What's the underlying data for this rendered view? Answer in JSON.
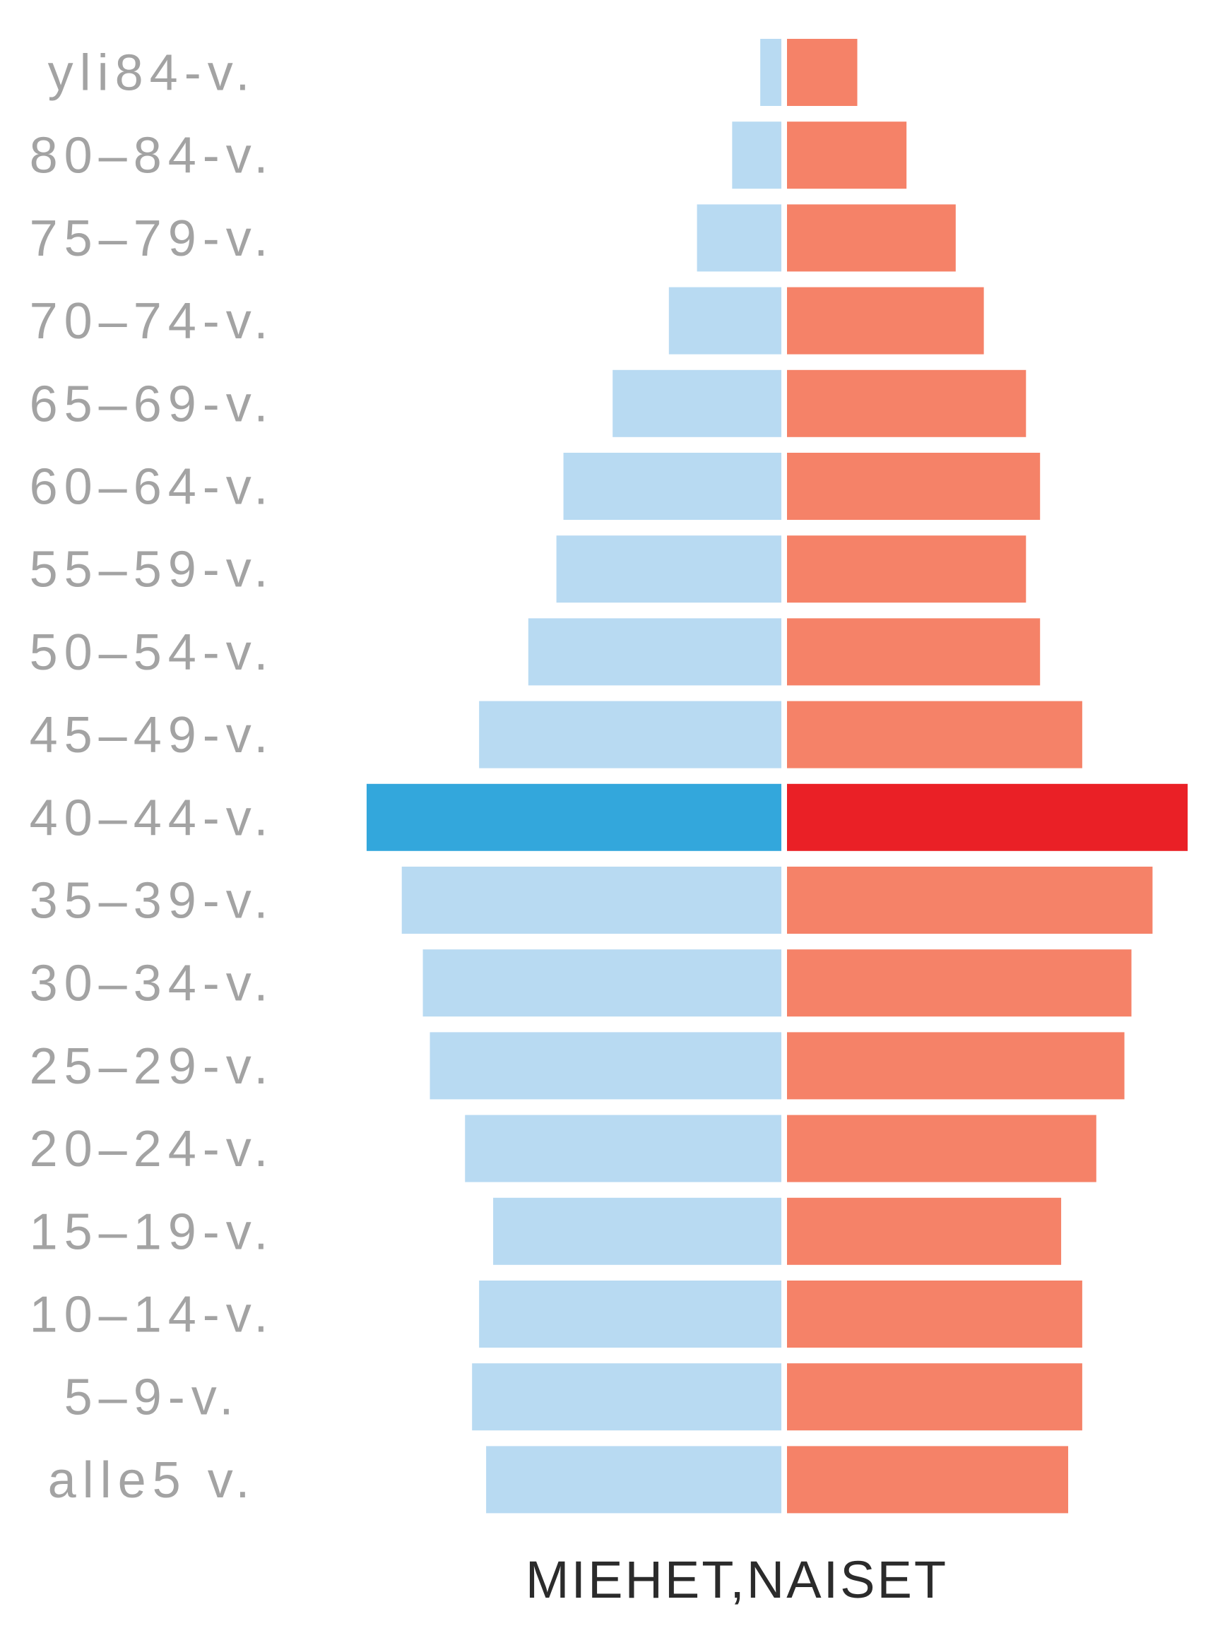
{
  "chart_data": {
    "type": "bar",
    "orientation": "horizontal-population-pyramid",
    "categories": [
      "yli84-v.",
      "80–84-v.",
      "75–79-v.",
      "70–74-v.",
      "65–69-v.",
      "60–64-v.",
      "55–59-v.",
      "50–54-v.",
      "45–49-v.",
      "40–44-v.",
      "35–39-v.",
      "30–34-v.",
      "25–29-v.",
      "20–24-v.",
      "15–19-v.",
      "10–14-v.",
      "5–9-v.",
      "alle5 v."
    ],
    "series": [
      {
        "values": [
          3,
          7,
          12,
          16,
          24,
          31,
          32,
          36,
          43,
          59,
          54,
          51,
          50,
          45,
          41,
          43,
          44,
          42
        ]
      },
      {
        "values": [
          10,
          17,
          24,
          28,
          34,
          36,
          34,
          36,
          42,
          57,
          52,
          49,
          48,
          44,
          39,
          42,
          42,
          40
        ]
      }
    ],
    "highlight_index": 9,
    "xlabel": "MIEHET,NAISET",
    "ylabel": "",
    "title": "",
    "grid": false,
    "legend": "none",
    "colors": {
      "men": "#b8daf2",
      "men_highlight": "#33a7dc",
      "women": "#f58268",
      "women_highlight": "#ea2026",
      "label": "#a3a3a3",
      "caption": "#2b2b2b"
    }
  }
}
